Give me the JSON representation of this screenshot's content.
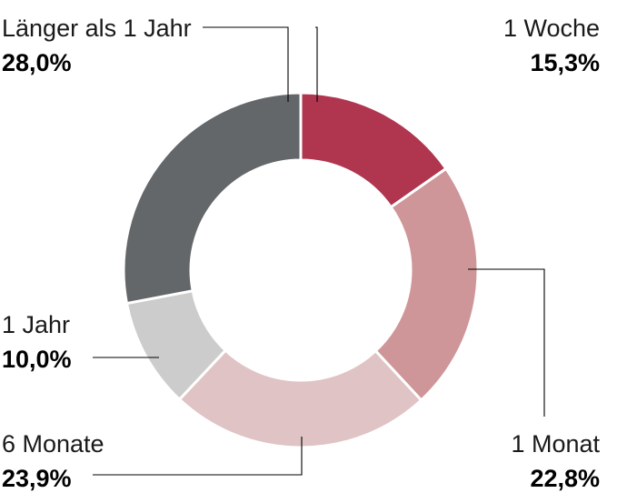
{
  "chart_data": {
    "type": "pie",
    "variant": "donut",
    "unit": "%",
    "slices": [
      {
        "label": "1 Woche",
        "value": 15.3,
        "value_text": "15,3%",
        "color": "#b03650"
      },
      {
        "label": "1 Monat",
        "value": 22.8,
        "value_text": "22,8%",
        "color": "#cf9699"
      },
      {
        "label": "6 Monate",
        "value": 23.9,
        "value_text": "23,9%",
        "color": "#e0c3c4"
      },
      {
        "label": "1 Jahr",
        "value": 10.0,
        "value_text": "10,0%",
        "color": "#cccccc"
      },
      {
        "label": "Länger als 1 Jahr",
        "value": 28.0,
        "value_text": "28,0%",
        "color": "#636769"
      }
    ],
    "start_angle": "12 o'clock",
    "direction": "clockwise",
    "legend": "none (labels with leader lines)"
  }
}
